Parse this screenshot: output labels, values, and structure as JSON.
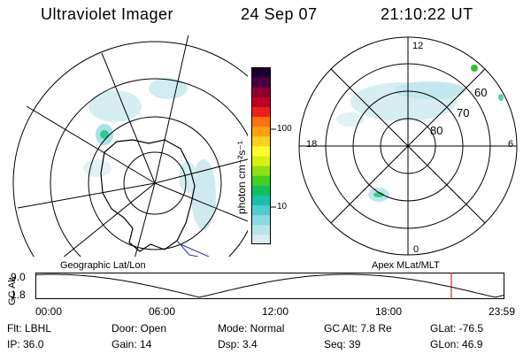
{
  "header": {
    "instrument": "Ultraviolet Imager",
    "date": "24 Sep 07",
    "time": "21:10:22 UT"
  },
  "colorbar": {
    "unit_label": "photon cm⁻²s⁻¹",
    "tick_labels": [
      "100",
      "10"
    ],
    "colors": [
      "#d8ecee",
      "#b8e4ea",
      "#8ad8e0",
      "#50ccd0",
      "#18c0a8",
      "#10c060",
      "#40d020",
      "#90e010",
      "#d8f010",
      "#ffff30",
      "#ffd020",
      "#ffa010",
      "#ff7010",
      "#e82020",
      "#c00020",
      "#8a0030",
      "#4a0040",
      "#1a0030"
    ]
  },
  "geo_map": {
    "title": "Geographic Lat/Lon"
  },
  "mlt_map": {
    "title": "Apex MLat/MLT",
    "hour_labels": {
      "top": "12",
      "left": "18",
      "right": "6",
      "bottom": "0"
    },
    "lat_labels": [
      "60",
      "70",
      "80"
    ]
  },
  "timeseries": {
    "y_axis_label": "GC Alt",
    "y_ticks": [
      "9.0",
      "1.8"
    ],
    "x_ticks": [
      "00:00",
      "06:00",
      "12:00",
      "18:00",
      "23:59"
    ],
    "current_time_marker_color": "#cc0000"
  },
  "info": {
    "filter": "Flt: LBHL",
    "door": "Door: Open",
    "mode": "Mode: Normal",
    "gc_alt": "GC Alt: 7.8 Re",
    "glat": "GLat: -76.5",
    "ip": "IP: 36.0",
    "gain": "Gain: 14",
    "dsp": "Dsp:    3.4",
    "seq": "Seq: 39",
    "glon": "GLon:  46.9"
  }
}
